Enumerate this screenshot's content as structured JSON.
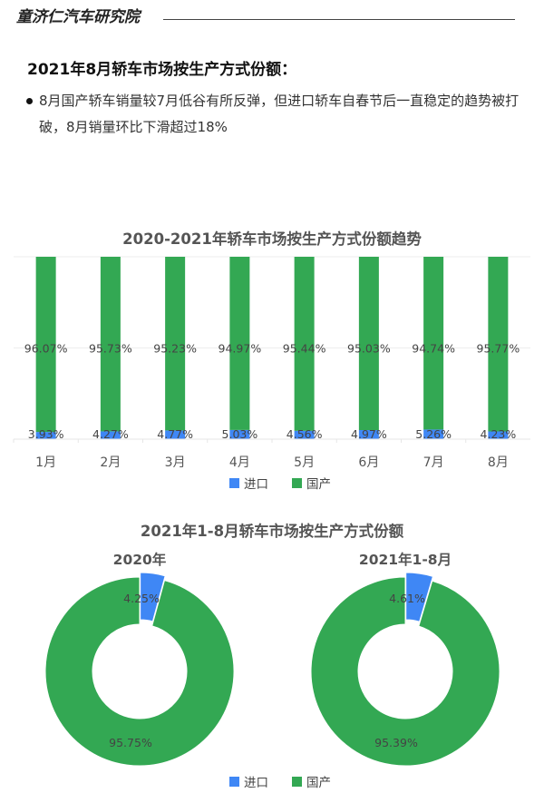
{
  "header": {
    "brand": "童济仁汽车研究院"
  },
  "section": {
    "title": "2021年8月轿车市场按生产方式份额：",
    "bullet": "8月国产轿车销量较7月低谷有所反弹，但进口轿车自春节后一直稳定的趋势被打破，8月销量环比下滑超过18%"
  },
  "colors": {
    "import": "#3f87f5",
    "domestic": "#33a853",
    "label": "#444444"
  },
  "legend": {
    "import": "进口",
    "domestic": "国产"
  },
  "chart_data": [
    {
      "type": "bar",
      "stacked": true,
      "normalized": true,
      "title": "2020-2021年轿车市场按生产方式份额趋势",
      "categories": [
        "1月",
        "2月",
        "3月",
        "4月",
        "5月",
        "6月",
        "7月",
        "8月"
      ],
      "series": [
        {
          "name": "进口",
          "color": "#3f87f5",
          "values": [
            3.93,
            4.27,
            4.77,
            5.03,
            4.56,
            4.97,
            5.26,
            4.23
          ],
          "labels": [
            "3.93%",
            "4.27%",
            "4.77%",
            "5.03%",
            "4.56%",
            "4.97%",
            "5.26%",
            "4.23%"
          ]
        },
        {
          "name": "国产",
          "color": "#33a853",
          "values": [
            96.07,
            95.73,
            95.23,
            94.97,
            95.44,
            95.03,
            94.74,
            95.77
          ],
          "labels": [
            "96.07%",
            "95.73%",
            "95.23%",
            "94.97%",
            "95.44%",
            "95.03%",
            "94.74%",
            "95.77%"
          ]
        }
      ],
      "xlabel": "",
      "ylabel": "",
      "ylim": [
        0,
        100
      ],
      "grid": true,
      "legend_position": "bottom"
    },
    {
      "type": "pie",
      "variant": "donut",
      "title": "2021年1-8月轿车市场按生产方式份额",
      "subtitle": "2020年",
      "categories": [
        "进口",
        "国产"
      ],
      "values": [
        4.25,
        95.75
      ],
      "labels": [
        "4.25%",
        "95.75%"
      ],
      "legend_position": "bottom"
    },
    {
      "type": "pie",
      "variant": "donut",
      "title": "2021年1-8月轿车市场按生产方式份额",
      "subtitle": "2021年1-8月",
      "categories": [
        "进口",
        "国产"
      ],
      "values": [
        4.61,
        95.39
      ],
      "labels": [
        "4.61%",
        "95.39%"
      ],
      "legend_position": "bottom"
    }
  ]
}
